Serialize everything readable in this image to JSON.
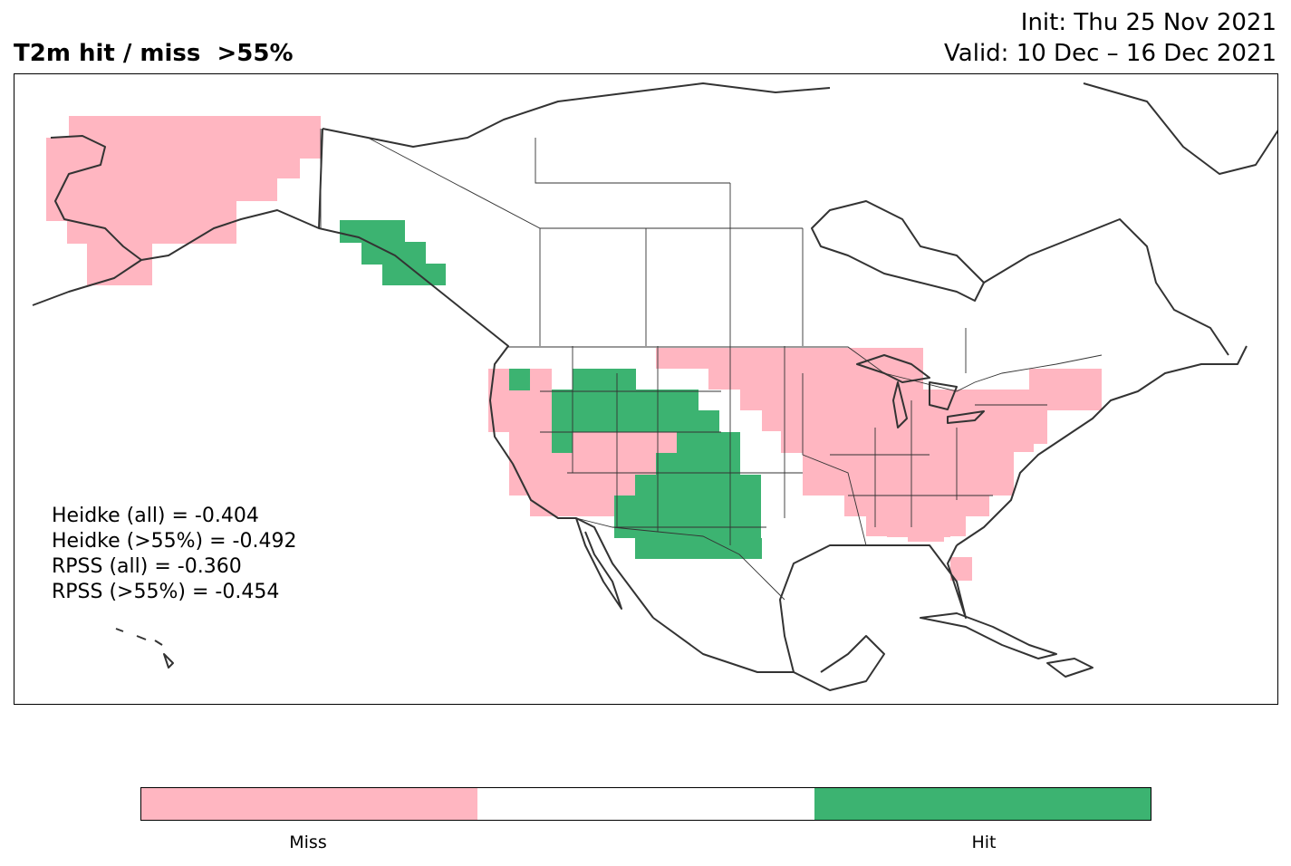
{
  "header": {
    "title": "T2m hit / miss  >55%",
    "init": "Init: Thu 25 Nov 2021",
    "valid": "Valid: 10 Dec – 16 Dec 2021"
  },
  "stats": {
    "heidke_all": "Heidke (all) = -0.404",
    "heidke_55": "Heidke (>55%) = -0.492",
    "rpss_all": "RPSS (all) = -0.360",
    "rpss_55": "RPSS (>55%) = -0.454"
  },
  "colorbar": {
    "colors": [
      "#FFB6C1",
      "#FFFFFF",
      "#3CB371"
    ],
    "labels": {
      "miss": "Miss",
      "hit": "Hit"
    }
  },
  "colors": {
    "miss": "#FFB6C1",
    "hit": "#3CB371",
    "outline": "#333333"
  }
}
